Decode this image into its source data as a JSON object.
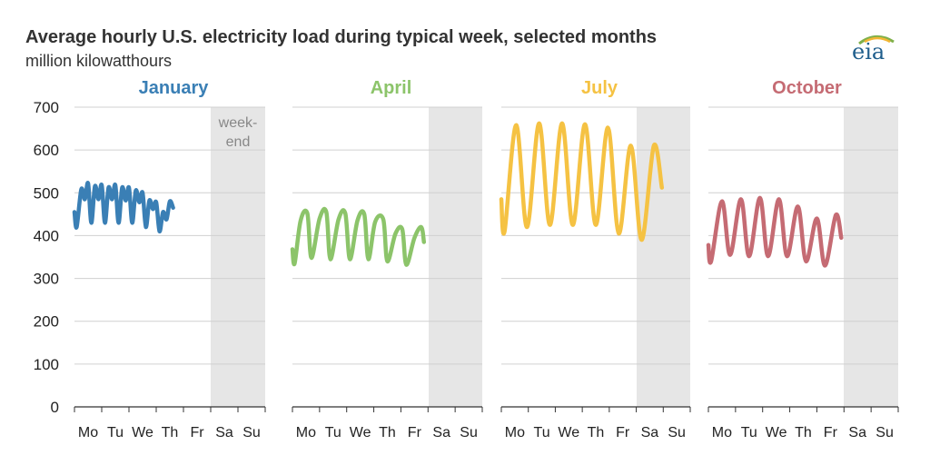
{
  "header": {
    "title": "Average hourly U.S. electricity load during typical week, selected months",
    "subtitle": "million kilowatthours",
    "logo_text": "eia"
  },
  "colors": {
    "January": "#3a7fb5",
    "April": "#8cc46a",
    "July": "#f5c243",
    "October": "#c56b73",
    "weekend_shade": "#e6e6e6",
    "grid": "#d0d0d0",
    "axis": "#333333"
  },
  "chart_data": {
    "type": "line",
    "ylim": [
      0,
      700
    ],
    "y_ticks": [
      0,
      100,
      200,
      300,
      400,
      500,
      600,
      700
    ],
    "x_days": [
      "Mo",
      "Tu",
      "We",
      "Th",
      "Fr",
      "Sa",
      "Su"
    ],
    "weekend_days": [
      "Sa",
      "Su"
    ],
    "weekend_annotation": [
      "week-",
      "end"
    ],
    "grid": true,
    "panels": [
      {
        "name": "January",
        "keypoints": [
          [
            0,
            455
          ],
          [
            0.08,
            420
          ],
          [
            0.25,
            508
          ],
          [
            0.38,
            485
          ],
          [
            0.5,
            522
          ],
          [
            0.62,
            430
          ],
          [
            0.75,
            515
          ],
          [
            0.88,
            485
          ],
          [
            1.0,
            518
          ],
          [
            1.12,
            430
          ],
          [
            1.25,
            512
          ],
          [
            1.38,
            485
          ],
          [
            1.5,
            518
          ],
          [
            1.62,
            430
          ],
          [
            1.75,
            512
          ],
          [
            1.88,
            482
          ],
          [
            2.0,
            512
          ],
          [
            2.12,
            430
          ],
          [
            2.25,
            505
          ],
          [
            2.38,
            478
          ],
          [
            2.5,
            500
          ],
          [
            2.62,
            420
          ],
          [
            2.75,
            482
          ],
          [
            2.88,
            462
          ],
          [
            3.0,
            478
          ],
          [
            3.12,
            410
          ],
          [
            3.25,
            455
          ],
          [
            3.38,
            438
          ],
          [
            3.5,
            480
          ],
          [
            3.62,
            465
          ]
        ]
      },
      {
        "name": "April",
        "keypoints": [
          [
            0,
            368
          ],
          [
            0.08,
            335
          ],
          [
            0.3,
            435
          ],
          [
            0.55,
            452
          ],
          [
            0.7,
            348
          ],
          [
            1.0,
            440
          ],
          [
            1.25,
            455
          ],
          [
            1.4,
            345
          ],
          [
            1.7,
            438
          ],
          [
            1.95,
            452
          ],
          [
            2.12,
            345
          ],
          [
            2.4,
            436
          ],
          [
            2.65,
            450
          ],
          [
            2.8,
            345
          ],
          [
            3.05,
            432
          ],
          [
            3.35,
            438
          ],
          [
            3.5,
            340
          ],
          [
            3.8,
            405
          ],
          [
            4.05,
            415
          ],
          [
            4.2,
            332
          ],
          [
            4.5,
            395
          ],
          [
            4.75,
            420
          ],
          [
            4.85,
            385
          ]
        ]
      },
      {
        "name": "July",
        "keypoints": [
          [
            0,
            485
          ],
          [
            0.12,
            410
          ],
          [
            0.55,
            658
          ],
          [
            0.95,
            420
          ],
          [
            1.4,
            662
          ],
          [
            1.8,
            425
          ],
          [
            2.25,
            662
          ],
          [
            2.65,
            425
          ],
          [
            3.1,
            660
          ],
          [
            3.5,
            425
          ],
          [
            3.95,
            652
          ],
          [
            4.35,
            405
          ],
          [
            4.8,
            610
          ],
          [
            5.2,
            390
          ],
          [
            5.65,
            610
          ],
          [
            5.95,
            512
          ]
        ]
      },
      {
        "name": "October",
        "keypoints": [
          [
            0,
            378
          ],
          [
            0.1,
            340
          ],
          [
            0.5,
            480
          ],
          [
            0.8,
            355
          ],
          [
            1.2,
            485
          ],
          [
            1.5,
            352
          ],
          [
            1.9,
            488
          ],
          [
            2.2,
            352
          ],
          [
            2.6,
            485
          ],
          [
            2.9,
            352
          ],
          [
            3.3,
            468
          ],
          [
            3.6,
            340
          ],
          [
            4.0,
            440
          ],
          [
            4.3,
            330
          ],
          [
            4.7,
            448
          ],
          [
            4.9,
            395
          ]
        ]
      }
    ]
  }
}
